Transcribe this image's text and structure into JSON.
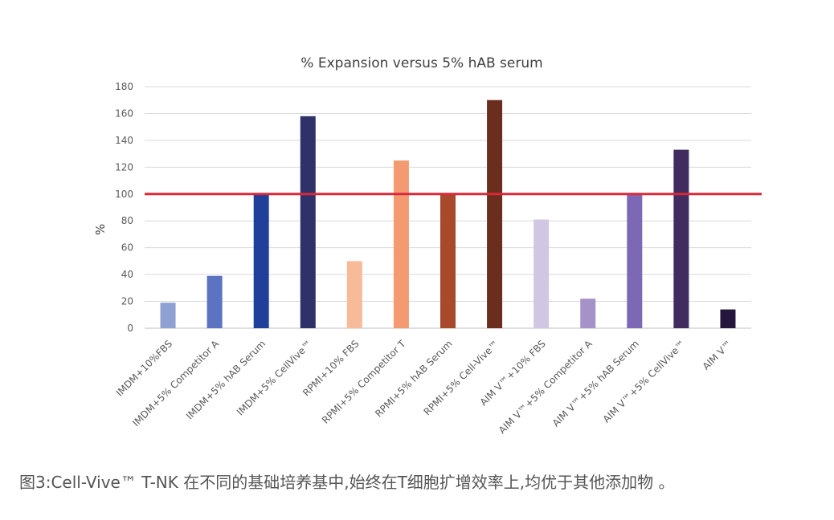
{
  "caption": "图3:Cell-Vive™ T-NK 在不同的基础培养基中,始终在T细胞扩增效率上,均优于其他添加物 。",
  "chart_data": {
    "type": "bar",
    "title": "% Expansion versus 5% hAB serum",
    "xlabel": "",
    "ylabel": "%",
    "ylim": [
      0,
      180
    ],
    "yticks": [
      0,
      20,
      40,
      60,
      80,
      100,
      120,
      140,
      160,
      180
    ],
    "grid": true,
    "reference_line": {
      "value": 100,
      "color": "#d9283a"
    },
    "categories": [
      "IMDM+10%FBS",
      "IMDM+5% Competitor A",
      "IMDM+5% hAB Serum",
      "IMDM+5% CellVive™",
      "RPMI+10% FBS",
      "RPMI+5% Competitor T",
      "RPMI+5% hAB Serum",
      "RPMI+5% Cell-Vive™",
      "AIM V™+10% FBS",
      "AIM V™+5% Competitor A",
      "AIM V™+5% hAB Serum",
      "AIM V™+5% CellVive™",
      "AIM V™"
    ],
    "values": [
      19,
      39,
      100,
      158,
      50,
      125,
      100,
      170,
      81,
      22,
      100,
      133,
      14
    ],
    "colors": [
      "#8fa0d2",
      "#5b73c0",
      "#1f3f9b",
      "#2f3268",
      "#f8bb9a",
      "#f49a70",
      "#a8492b",
      "#6b2e1e",
      "#d1c7e3",
      "#a592c8",
      "#7c68b4",
      "#402c5e",
      "#24163c"
    ]
  }
}
